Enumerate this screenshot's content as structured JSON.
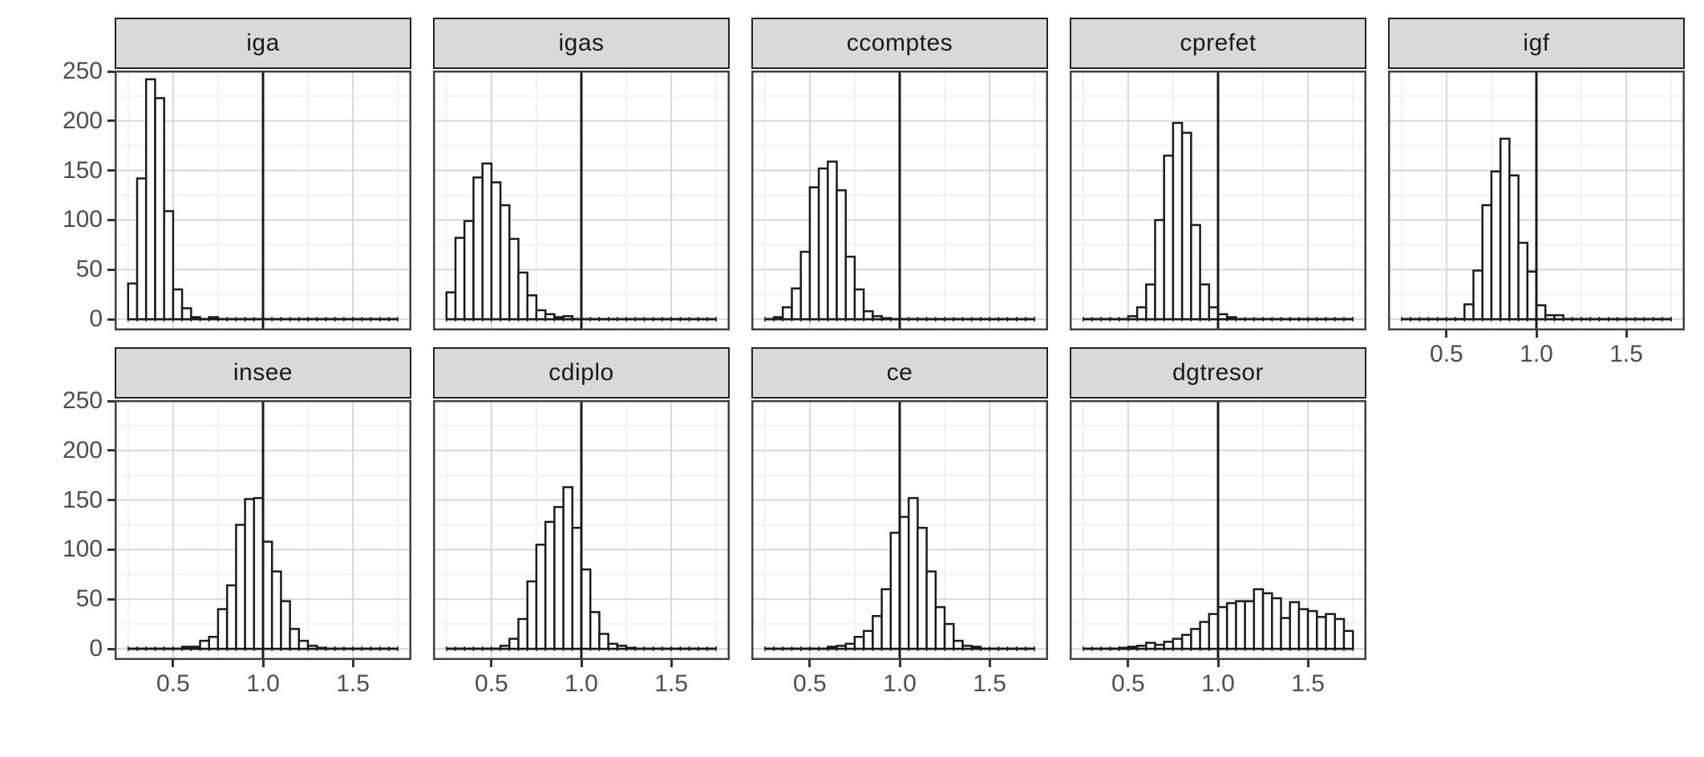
{
  "chart_data": {
    "type": "bar",
    "subtype": "faceted-histograms",
    "title": "",
    "xlabel": "",
    "ylabel": "",
    "x_range": [
      0.175,
      1.825
    ],
    "y_range": [
      0,
      250
    ],
    "bins": {
      "start": 0.25,
      "width": 0.05,
      "count": 30
    },
    "vline_x": 1.0,
    "x_ticks": [
      0.5,
      1.0,
      1.5
    ],
    "x_tick_labels": [
      "0.5",
      "1.0",
      "1.5"
    ],
    "y_ticks": [
      0,
      50,
      100,
      150,
      200,
      250
    ],
    "y_tick_labels": [
      "0",
      "50",
      "100",
      "150",
      "200",
      "250"
    ],
    "grid": {
      "x_major": [
        0.5,
        1.0,
        1.5
      ],
      "x_minor": [
        0.25,
        0.75,
        1.25,
        1.75
      ],
      "y_major": [
        0,
        50,
        100,
        150,
        200,
        250
      ],
      "y_minor": [
        25,
        75,
        125,
        175,
        225
      ]
    },
    "legend": null,
    "facets": [
      {
        "label": "iga",
        "row": 0,
        "col": 0,
        "show_y_axis": true,
        "show_x_axis": false,
        "counts": [
          36,
          142,
          242,
          223,
          109,
          30,
          11,
          2,
          0,
          2,
          0,
          0,
          0,
          0,
          0,
          0,
          0,
          0,
          0,
          0,
          0,
          0,
          0,
          0,
          0,
          0,
          0,
          0,
          0,
          0
        ]
      },
      {
        "label": "igas",
        "row": 0,
        "col": 1,
        "show_y_axis": false,
        "show_x_axis": false,
        "counts": [
          27,
          82,
          99,
          143,
          157,
          138,
          115,
          81,
          47,
          24,
          9,
          5,
          2,
          3,
          0,
          0,
          0,
          0,
          0,
          0,
          0,
          0,
          0,
          0,
          0,
          0,
          0,
          0,
          0,
          0
        ]
      },
      {
        "label": "ccomptes",
        "row": 0,
        "col": 2,
        "show_y_axis": false,
        "show_x_axis": false,
        "counts": [
          0,
          2,
          12,
          31,
          68,
          133,
          152,
          159,
          130,
          63,
          30,
          8,
          3,
          1,
          0,
          0,
          0,
          0,
          0,
          0,
          0,
          0,
          0,
          0,
          0,
          0,
          0,
          0,
          0,
          0
        ]
      },
      {
        "label": "cprefet",
        "row": 0,
        "col": 3,
        "show_y_axis": false,
        "show_x_axis": false,
        "counts": [
          0,
          0,
          0,
          0,
          0,
          3,
          12,
          35,
          100,
          165,
          198,
          188,
          95,
          35,
          12,
          5,
          2,
          0,
          0,
          0,
          0,
          0,
          0,
          0,
          0,
          0,
          0,
          0,
          0,
          0
        ]
      },
      {
        "label": "igf",
        "row": 0,
        "col": 4,
        "show_y_axis": false,
        "show_x_axis": true,
        "counts": [
          0,
          0,
          0,
          0,
          0,
          0,
          0,
          15,
          49,
          115,
          149,
          182,
          145,
          77,
          48,
          14,
          4,
          4,
          0,
          0,
          0,
          0,
          0,
          0,
          0,
          0,
          0,
          0,
          0,
          0
        ]
      },
      {
        "label": "insee",
        "row": 1,
        "col": 0,
        "show_y_axis": true,
        "show_x_axis": true,
        "counts": [
          0,
          0,
          0,
          0,
          0,
          0,
          2,
          2,
          8,
          12,
          40,
          64,
          125,
          151,
          152,
          108,
          78,
          48,
          20,
          8,
          3,
          1,
          0,
          0,
          0,
          0,
          0,
          0,
          0,
          0
        ]
      },
      {
        "label": "cdiplo",
        "row": 1,
        "col": 1,
        "show_y_axis": false,
        "show_x_axis": true,
        "counts": [
          0,
          0,
          0,
          0,
          0,
          0,
          3,
          10,
          30,
          68,
          105,
          128,
          143,
          163,
          122,
          80,
          37,
          15,
          5,
          3,
          1,
          0,
          0,
          0,
          0,
          0,
          0,
          0,
          0,
          0
        ]
      },
      {
        "label": "ce",
        "row": 1,
        "col": 2,
        "show_y_axis": false,
        "show_x_axis": true,
        "counts": [
          0,
          0,
          0,
          0,
          0,
          0,
          0,
          2,
          3,
          5,
          12,
          18,
          33,
          60,
          117,
          133,
          152,
          122,
          78,
          42,
          25,
          8,
          3,
          2,
          0,
          0,
          0,
          0,
          0,
          0
        ]
      },
      {
        "label": "dgtresor",
        "row": 1,
        "col": 3,
        "show_y_axis": false,
        "show_x_axis": true,
        "counts": [
          0,
          0,
          0,
          0,
          1,
          2,
          3,
          6,
          4,
          7,
          10,
          14,
          20,
          27,
          35,
          42,
          46,
          48,
          48,
          60,
          56,
          51,
          31,
          47,
          40,
          38,
          32,
          35,
          30,
          18
        ]
      }
    ],
    "colors": {
      "strip_bg": "#D9D9D9",
      "strip_border": "#222222",
      "strip_text": "#1a1a1a",
      "panel_border": "#404040",
      "panel_bg": "#ffffff",
      "grid_major": "#DBDBDB",
      "grid_minor": "#EFEFEF",
      "bar_fill": "#ffffff",
      "bar_stroke": "#1a1a1a",
      "baseline": "#1a1a1a",
      "vline": "#1a1a1a",
      "axis_text": "#4d4d4d",
      "tick_mark": "#333333"
    }
  }
}
